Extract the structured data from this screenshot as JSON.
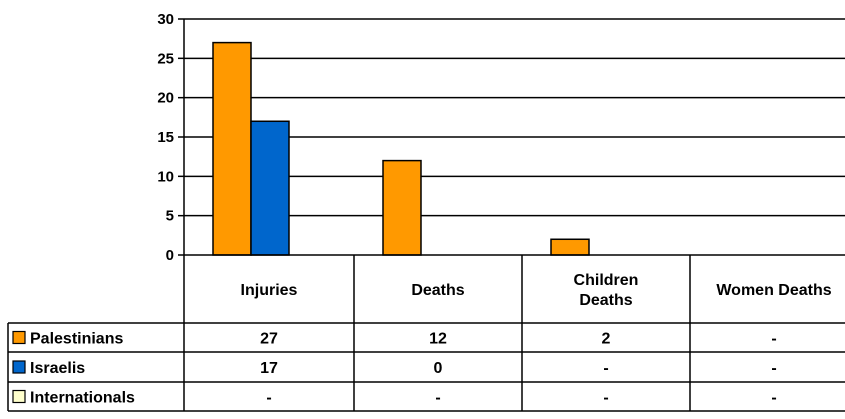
{
  "chart_data": {
    "type": "bar",
    "title": "",
    "xlabel": "",
    "ylabel": "",
    "ylim": [
      0,
      30
    ],
    "yticks": [
      0,
      5,
      10,
      15,
      20,
      25,
      30
    ],
    "grid": true,
    "legend_placement": "data-table-left",
    "categories": [
      [
        "Injuries"
      ],
      [
        "Deaths"
      ],
      [
        "Children",
        "Deaths"
      ],
      [
        "Women Deaths"
      ]
    ],
    "series": [
      {
        "name": "Palestinians",
        "color": "#ff9900",
        "values": [
          27,
          12,
          2,
          null
        ],
        "table_values": [
          "27",
          "12",
          "2",
          "-"
        ]
      },
      {
        "name": "Israelis",
        "color": "#0066cc",
        "values": [
          17,
          0,
          null,
          null
        ],
        "table_values": [
          "17",
          "0",
          "-",
          "-"
        ]
      },
      {
        "name": "Internationals",
        "color": "#ffffcc",
        "values": [
          null,
          null,
          null,
          null
        ],
        "table_values": [
          "-",
          "-",
          "-",
          "-"
        ]
      }
    ]
  }
}
